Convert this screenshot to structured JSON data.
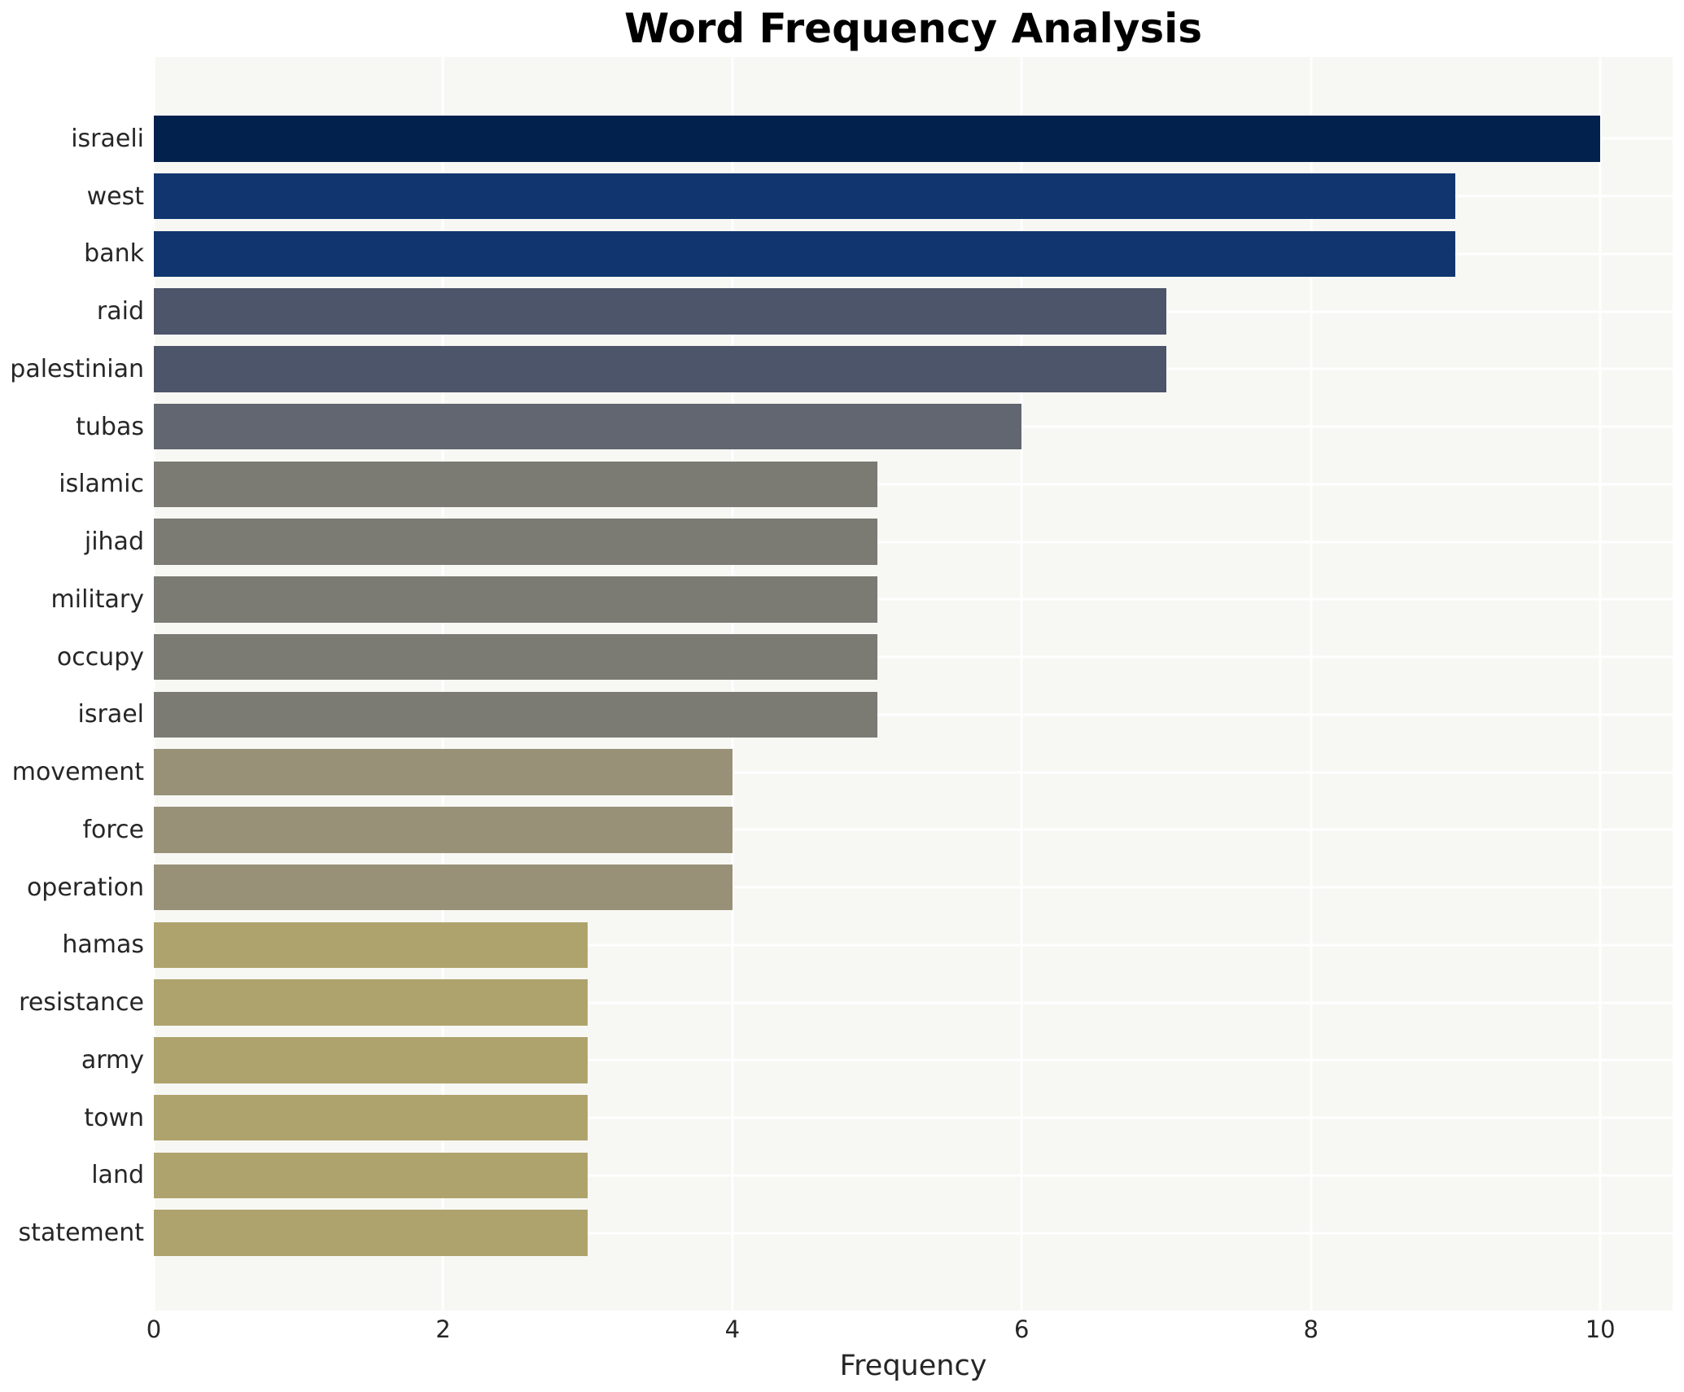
{
  "chart_data": {
    "type": "bar",
    "orientation": "horizontal",
    "title": "Word Frequency Analysis",
    "xlabel": "Frequency",
    "ylabel": "",
    "xlim": [
      0,
      10.5
    ],
    "x_ticks": [
      "0",
      "2",
      "4",
      "6",
      "8",
      "10"
    ],
    "grid": true,
    "legend": "none",
    "categories": [
      "israeli",
      "west",
      "bank",
      "raid",
      "palestinian",
      "tubas",
      "islamic",
      "jihad",
      "military",
      "occupy",
      "israel",
      "movement",
      "force",
      "operation",
      "hamas",
      "resistance",
      "army",
      "town",
      "land",
      "statement"
    ],
    "values": [
      10,
      9,
      9,
      7,
      7,
      6,
      5,
      5,
      5,
      5,
      5,
      4,
      4,
      4,
      3,
      3,
      3,
      3,
      3,
      3
    ],
    "bar_colors": [
      "#02214d",
      "#10356f",
      "#10356f",
      "#4c5569",
      "#4c5569",
      "#616670",
      "#7b7a73",
      "#7b7a73",
      "#7b7a73",
      "#7b7a73",
      "#7b7a73",
      "#989177",
      "#989177",
      "#989177",
      "#aea36c",
      "#aea36c",
      "#aea36c",
      "#aea36c",
      "#aea36c",
      "#aea36c"
    ],
    "value_color_map": {
      "10": "#02214d",
      "9": "#10356f",
      "7": "#4c5569",
      "6": "#616670",
      "5": "#7b7a73",
      "4": "#989177",
      "3": "#aea36c"
    }
  },
  "style_colors": {
    "figure_bg": "#ffffff",
    "plot_bg": "#f7f7f4",
    "gridline": "#ffffff",
    "tick_text": "#262626",
    "title_text": "#000000"
  }
}
